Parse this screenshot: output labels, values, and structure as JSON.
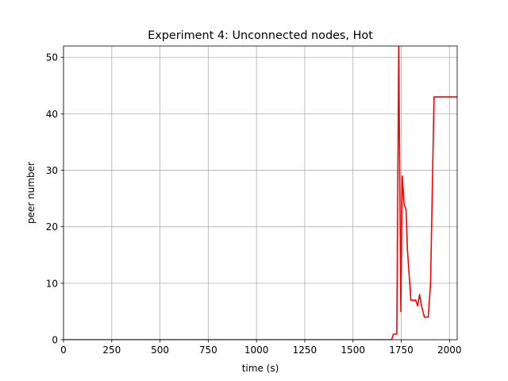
{
  "chart_data": {
    "type": "line",
    "title": "Experiment 4: Unconnected nodes, Hot",
    "xlabel": "time (s)",
    "ylabel": "peer number",
    "xlim": [
      0,
      2040
    ],
    "ylim": [
      0,
      52
    ],
    "xticks": [
      0,
      250,
      500,
      750,
      1000,
      1250,
      1500,
      1750,
      2000
    ],
    "yticks": [
      0,
      10,
      20,
      30,
      40,
      50
    ],
    "grid": true,
    "series": [
      {
        "color": "#ff0000",
        "x": [
          0,
          1700,
          1710,
          1727,
          1737,
          1748,
          1755,
          1765,
          1775,
          1782,
          1790,
          1800,
          1810,
          1825,
          1835,
          1845,
          1855,
          1870,
          1890,
          1902,
          1920,
          2040
        ],
        "y": [
          0,
          0,
          1,
          1,
          52,
          5,
          29,
          24,
          23,
          16,
          12,
          7,
          7,
          7,
          6,
          8,
          6,
          4,
          4,
          10,
          43,
          43
        ]
      }
    ]
  }
}
